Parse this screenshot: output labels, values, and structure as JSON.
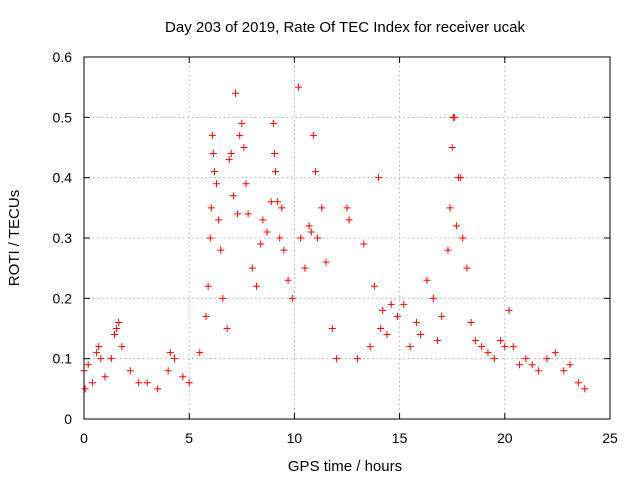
{
  "chart_data": {
    "type": "scatter",
    "title": "Day 203 of 2019, Rate Of TEC Index for receiver ucak",
    "xlabel": "GPS time / hours",
    "ylabel": "ROTI / TECUs",
    "xlim": [
      0,
      25
    ],
    "ylim": [
      0,
      0.6
    ],
    "xticks": [
      "0",
      "5",
      "10",
      "15",
      "20",
      "25"
    ],
    "xtick_values": [
      0,
      5,
      10,
      15,
      20,
      25
    ],
    "yticks": [
      "0",
      "0.1",
      "0.2",
      "0.3",
      "0.4",
      "0.5",
      "0.6"
    ],
    "ytick_values": [
      0,
      0.1,
      0.2,
      0.3,
      0.4,
      0.5,
      0.6
    ],
    "grid": true,
    "marker": "+",
    "color": "#ff0000",
    "series": [
      {
        "points": [
          [
            0.0,
            0.08
          ],
          [
            0.05,
            0.05
          ],
          [
            0.2,
            0.09
          ],
          [
            0.4,
            0.06
          ],
          [
            0.6,
            0.11
          ],
          [
            0.7,
            0.12
          ],
          [
            0.8,
            0.1
          ],
          [
            1.0,
            0.07
          ],
          [
            1.3,
            0.1
          ],
          [
            1.45,
            0.14
          ],
          [
            1.55,
            0.15
          ],
          [
            1.65,
            0.16
          ],
          [
            1.8,
            0.12
          ],
          [
            2.2,
            0.08
          ],
          [
            2.6,
            0.06
          ],
          [
            3.0,
            0.06
          ],
          [
            3.5,
            0.05
          ],
          [
            4.0,
            0.08
          ],
          [
            4.1,
            0.11
          ],
          [
            4.3,
            0.1
          ],
          [
            4.7,
            0.07
          ],
          [
            5.0,
            0.06
          ],
          [
            5.5,
            0.11
          ],
          [
            5.8,
            0.17
          ],
          [
            5.9,
            0.22
          ],
          [
            6.0,
            0.3
          ],
          [
            6.05,
            0.35
          ],
          [
            6.1,
            0.47
          ],
          [
            6.15,
            0.44
          ],
          [
            6.2,
            0.41
          ],
          [
            6.3,
            0.39
          ],
          [
            6.4,
            0.33
          ],
          [
            6.5,
            0.28
          ],
          [
            6.6,
            0.2
          ],
          [
            6.8,
            0.15
          ],
          [
            6.9,
            0.43
          ],
          [
            7.0,
            0.44
          ],
          [
            7.1,
            0.37
          ],
          [
            7.2,
            0.54
          ],
          [
            7.3,
            0.34
          ],
          [
            7.4,
            0.47
          ],
          [
            7.5,
            0.49
          ],
          [
            7.6,
            0.45
          ],
          [
            7.7,
            0.39
          ],
          [
            7.8,
            0.34
          ],
          [
            8.0,
            0.25
          ],
          [
            8.2,
            0.22
          ],
          [
            8.4,
            0.29
          ],
          [
            8.5,
            0.33
          ],
          [
            8.7,
            0.31
          ],
          [
            8.9,
            0.36
          ],
          [
            9.0,
            0.49
          ],
          [
            9.05,
            0.44
          ],
          [
            9.1,
            0.41
          ],
          [
            9.2,
            0.36
          ],
          [
            9.3,
            0.3
          ],
          [
            9.4,
            0.35
          ],
          [
            9.5,
            0.28
          ],
          [
            9.7,
            0.23
          ],
          [
            9.9,
            0.2
          ],
          [
            10.2,
            0.55
          ],
          [
            10.3,
            0.3
          ],
          [
            10.5,
            0.25
          ],
          [
            10.7,
            0.32
          ],
          [
            10.8,
            0.31
          ],
          [
            10.9,
            0.47
          ],
          [
            11.0,
            0.41
          ],
          [
            11.1,
            0.3
          ],
          [
            11.3,
            0.35
          ],
          [
            11.5,
            0.26
          ],
          [
            11.8,
            0.15
          ],
          [
            12.0,
            0.1
          ],
          [
            12.5,
            0.35
          ],
          [
            12.6,
            0.33
          ],
          [
            13.0,
            0.1
          ],
          [
            13.3,
            0.29
          ],
          [
            13.6,
            0.12
          ],
          [
            13.8,
            0.22
          ],
          [
            14.0,
            0.4
          ],
          [
            14.1,
            0.15
          ],
          [
            14.2,
            0.18
          ],
          [
            14.4,
            0.14
          ],
          [
            14.6,
            0.19
          ],
          [
            14.9,
            0.17
          ],
          [
            15.2,
            0.19
          ],
          [
            15.5,
            0.12
          ],
          [
            15.8,
            0.16
          ],
          [
            16.0,
            0.14
          ],
          [
            16.3,
            0.23
          ],
          [
            16.6,
            0.2
          ],
          [
            16.8,
            0.13
          ],
          [
            17.0,
            0.17
          ],
          [
            17.3,
            0.28
          ],
          [
            17.4,
            0.35
          ],
          [
            17.5,
            0.45
          ],
          [
            17.55,
            0.5
          ],
          [
            17.6,
            0.5
          ],
          [
            17.7,
            0.32
          ],
          [
            17.8,
            0.4
          ],
          [
            17.9,
            0.4
          ],
          [
            18.0,
            0.3
          ],
          [
            18.2,
            0.25
          ],
          [
            18.4,
            0.16
          ],
          [
            18.6,
            0.13
          ],
          [
            18.9,
            0.12
          ],
          [
            19.2,
            0.11
          ],
          [
            19.5,
            0.1
          ],
          [
            19.8,
            0.13
          ],
          [
            20.0,
            0.12
          ],
          [
            20.2,
            0.18
          ],
          [
            20.4,
            0.12
          ],
          [
            20.7,
            0.09
          ],
          [
            21.0,
            0.1
          ],
          [
            21.3,
            0.09
          ],
          [
            21.6,
            0.08
          ],
          [
            22.0,
            0.1
          ],
          [
            22.4,
            0.11
          ],
          [
            22.8,
            0.08
          ],
          [
            23.1,
            0.09
          ],
          [
            23.5,
            0.06
          ],
          [
            23.8,
            0.05
          ]
        ]
      }
    ]
  }
}
